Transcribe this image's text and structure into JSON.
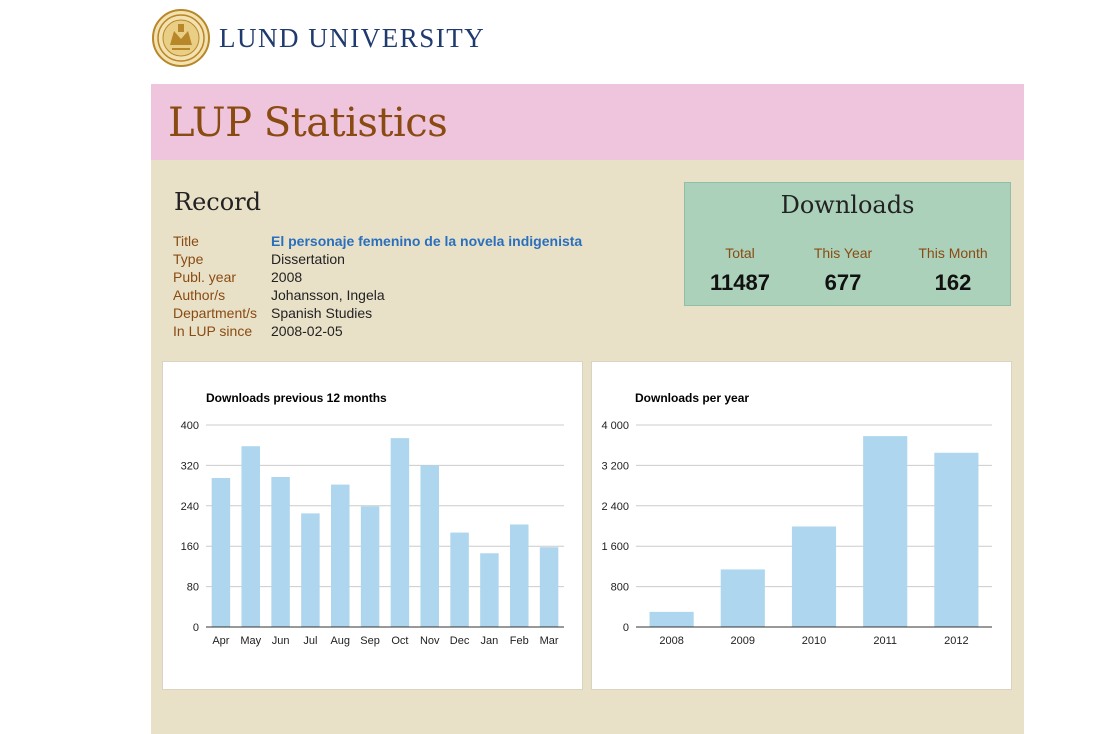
{
  "header": {
    "brand": "LUND UNIVERSITY",
    "seal_icon": "lund-university-seal-icon"
  },
  "banner": {
    "title": "LUP Statistics",
    "bg_color": "#efc5de",
    "title_color": "#8a4b12"
  },
  "record": {
    "heading": "Record",
    "fields": [
      {
        "label": "Title",
        "value": "El personaje femenino de la novela indigenista"
      },
      {
        "label": "Type",
        "value": "Dissertation"
      },
      {
        "label": "Publ. year",
        "value": "2008"
      },
      {
        "label": "Author/s",
        "value": "Johansson, Ingela"
      },
      {
        "label": "Department/s",
        "value": "Spanish Studies"
      },
      {
        "label": "In LUP since",
        "value": "2008-02-05"
      }
    ]
  },
  "downloads": {
    "heading": "Downloads",
    "total_label": "Total",
    "total": "11487",
    "year_label": "This Year",
    "year": "677",
    "month_label": "This Month",
    "month": "162",
    "bg_color": "#acd1bb"
  },
  "chart_data": [
    {
      "type": "bar",
      "title": "Downloads previous 12 months",
      "categories": [
        "Apr",
        "May",
        "Jun",
        "Jul",
        "Aug",
        "Sep",
        "Oct",
        "Nov",
        "Dec",
        "Jan",
        "Feb",
        "Mar"
      ],
      "values": [
        295,
        358,
        297,
        225,
        282,
        239,
        374,
        320,
        187,
        146,
        203,
        158
      ],
      "ylim": [
        0,
        400
      ],
      "yticks": [
        0,
        80,
        160,
        240,
        320,
        400
      ],
      "ytick_labels": [
        "0",
        "80",
        "160",
        "240",
        "320",
        "400"
      ],
      "xlabel": "",
      "ylabel": "",
      "bar_color": "#aed6ee",
      "grid": true
    },
    {
      "type": "bar",
      "title": "Downloads per year",
      "categories": [
        "2008",
        "2009",
        "2010",
        "2011",
        "2012"
      ],
      "values": [
        300,
        1140,
        1990,
        3780,
        3450
      ],
      "ylim": [
        0,
        4000
      ],
      "yticks": [
        0,
        800,
        1600,
        2400,
        3200,
        4000
      ],
      "ytick_labels": [
        "0",
        "800",
        "1 600",
        "2 400",
        "3 200",
        "4 000"
      ],
      "xlabel": "",
      "ylabel": "",
      "bar_color": "#aed6ee",
      "grid": true
    }
  ]
}
